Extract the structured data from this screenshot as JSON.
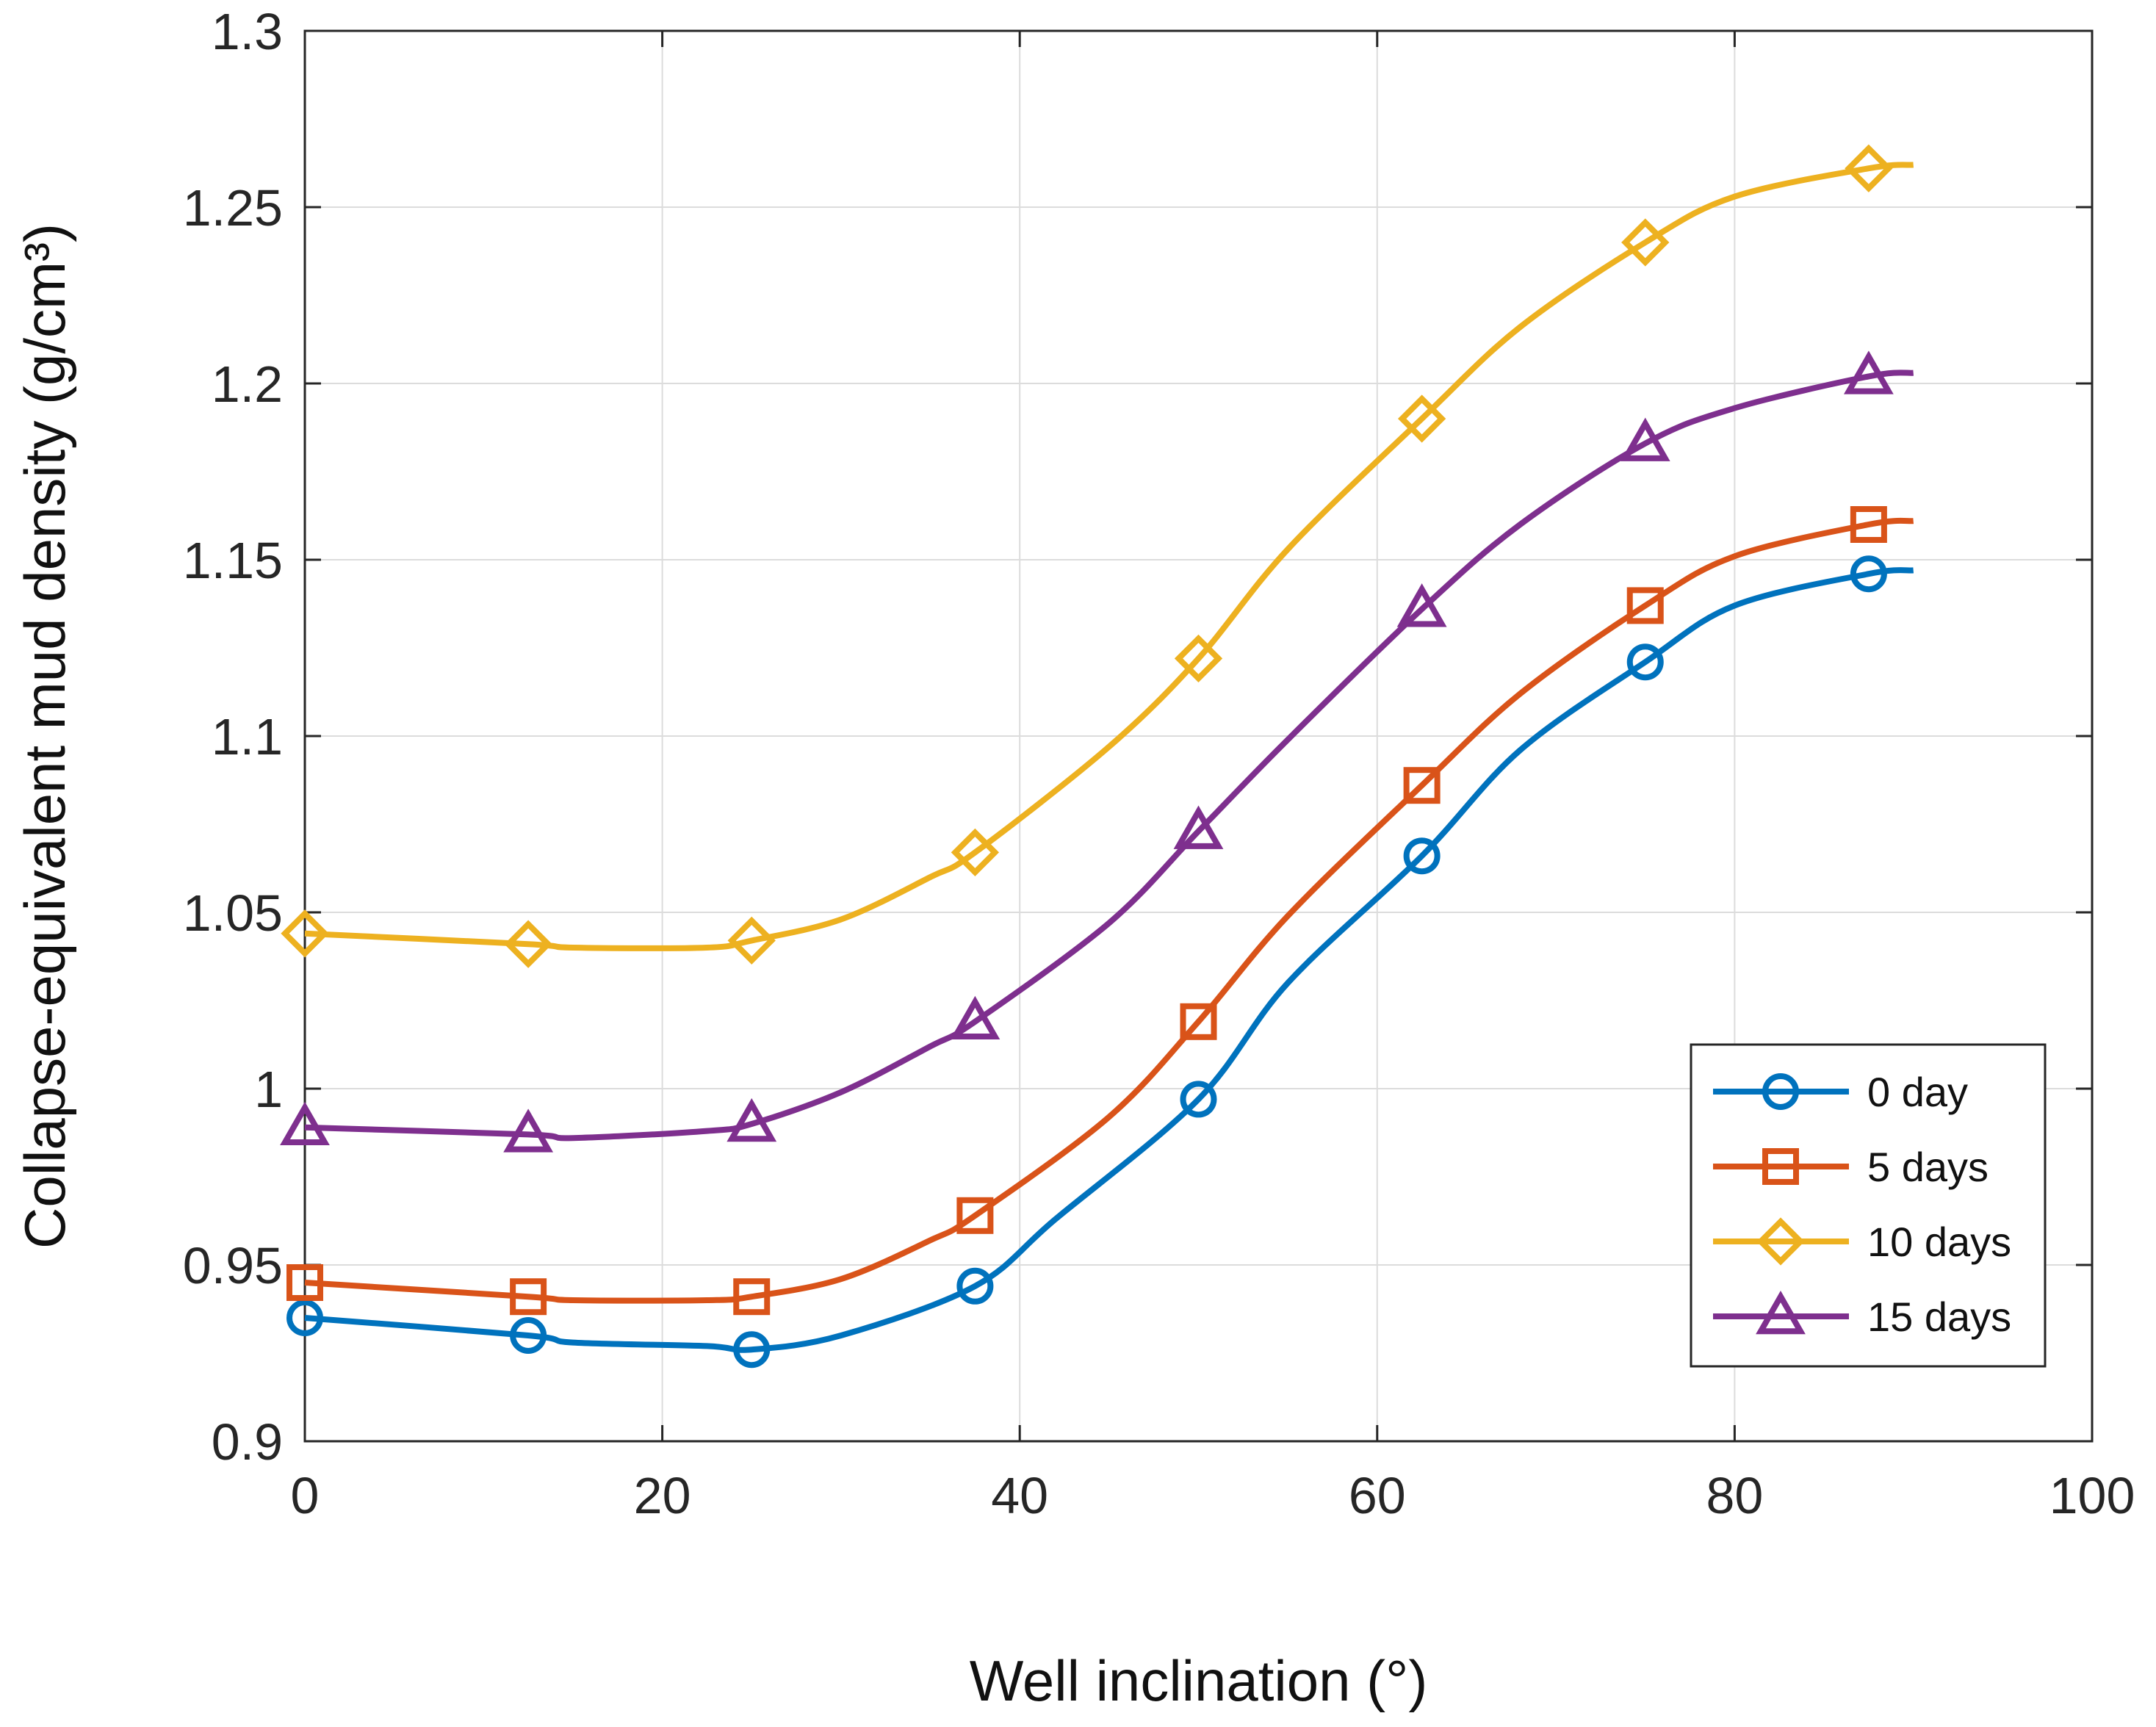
{
  "chart_data": {
    "type": "line",
    "xlabel": "Well inclination (°)",
    "ylabel": "Collapse-equivalent mud density (g/cm³)",
    "xlim": [
      0,
      100
    ],
    "ylim": [
      0.9,
      1.3
    ],
    "xticks": [
      "0",
      "20",
      "40",
      "60",
      "80",
      "100"
    ],
    "yticks": [
      "0.9",
      "0.95",
      "1",
      "1.05",
      "1.1",
      "1.15",
      "1.2",
      "1.25",
      "1.3"
    ],
    "grid": true,
    "legend_position": "bottom-right",
    "markers_x": [
      0,
      12.5,
      25,
      37.5,
      50,
      62.5,
      75,
      87.5
    ],
    "series": [
      {
        "name": "0 day",
        "color": "#0072BD",
        "marker": "circle",
        "x": [
          0,
          12.5,
          15,
          22.5,
          25,
          30,
          37.5,
          42,
          50,
          55,
          62.5,
          68,
          75,
          80,
          87.5,
          90
        ],
        "y": [
          0.935,
          0.93,
          0.928,
          0.927,
          0.926,
          0.93,
          0.944,
          0.963,
          0.997,
          1.03,
          1.066,
          1.096,
          1.121,
          1.137,
          1.146,
          1.147
        ]
      },
      {
        "name": "5 days",
        "color": "#D95319",
        "marker": "square",
        "x": [
          0,
          12.5,
          15,
          22.5,
          25,
          30,
          35,
          37.5,
          45,
          50,
          55,
          62.5,
          68,
          75,
          80,
          87.5,
          90
        ],
        "y": [
          0.945,
          0.941,
          0.94,
          0.94,
          0.941,
          0.946,
          0.957,
          0.964,
          0.992,
          1.019,
          1.049,
          1.086,
          1.112,
          1.137,
          1.151,
          1.16,
          1.161
        ]
      },
      {
        "name": "10 days",
        "color": "#EDB120",
        "marker": "diamond",
        "x": [
          0,
          12.5,
          15,
          22.5,
          25,
          30,
          35,
          37.5,
          45,
          50,
          55,
          62.5,
          68,
          75,
          80,
          87.5,
          90
        ],
        "y": [
          1.044,
          1.041,
          1.04,
          1.04,
          1.042,
          1.048,
          1.06,
          1.067,
          1.097,
          1.122,
          1.153,
          1.19,
          1.216,
          1.24,
          1.253,
          1.261,
          1.262
        ]
      },
      {
        "name": "15 days",
        "color": "#7E2F8E",
        "marker": "triangle",
        "x": [
          0,
          12.5,
          15,
          22.5,
          25,
          30,
          35,
          37.5,
          45,
          50,
          55,
          62.5,
          68,
          75,
          80,
          87.5,
          90
        ],
        "y": [
          0.989,
          0.987,
          0.986,
          0.988,
          0.99,
          0.999,
          1.012,
          1.019,
          1.047,
          1.073,
          1.099,
          1.136,
          1.16,
          1.183,
          1.193,
          1.202,
          1.203
        ]
      }
    ]
  }
}
